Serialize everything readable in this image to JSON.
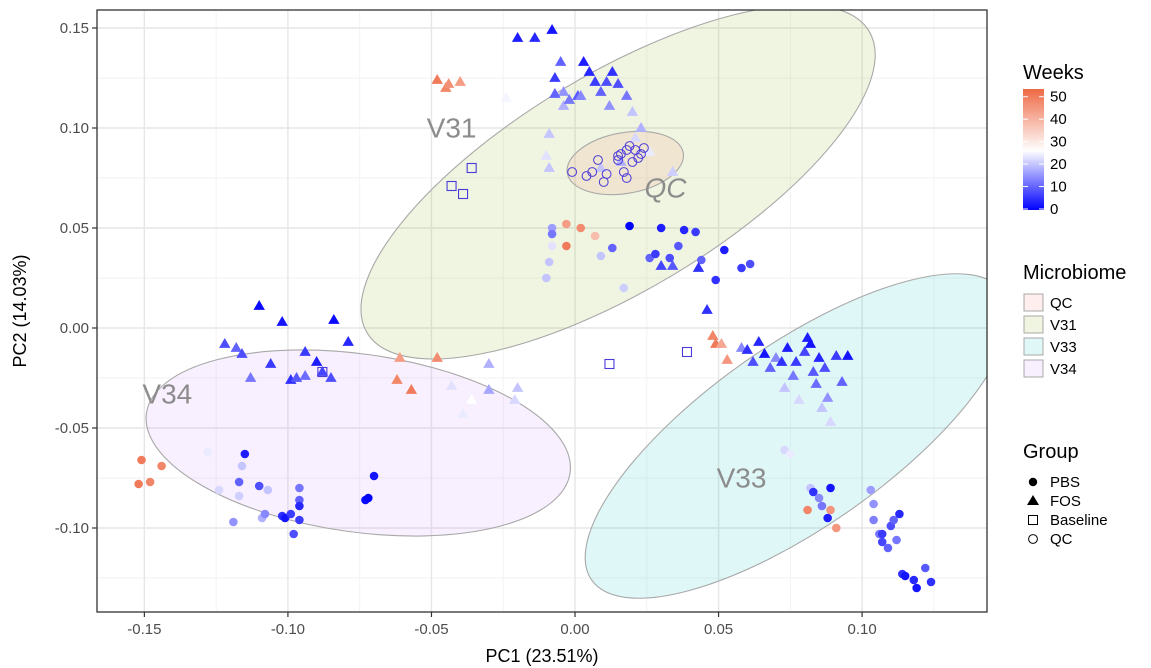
{
  "chart_data": {
    "type": "scatter",
    "xlabel": "PC1 (23.51%)",
    "ylabel": "PC2 (14.03%)",
    "xlim": [
      -0.1665,
      0.1435
    ],
    "ylim": [
      -0.142,
      0.159
    ],
    "x_ticks": [
      -0.15,
      -0.1,
      -0.05,
      0.0,
      0.05,
      0.1
    ],
    "x_tick_labels": [
      "-0.15",
      "-0.10",
      "-0.05",
      "0.00",
      "0.05",
      "0.10"
    ],
    "y_ticks": [
      -0.1,
      -0.05,
      0.0,
      0.05,
      0.1,
      0.15
    ],
    "y_tick_labels": [
      "-0.10",
      "-0.05",
      "0.00",
      "0.05",
      "0.10",
      "0.15"
    ],
    "grid": true,
    "color_legend": {
      "title": "Weeks",
      "ticks": [
        0,
        10,
        20,
        30,
        40,
        50
      ],
      "tick_labels": [
        "0",
        "10",
        "20",
        "30",
        "40",
        "50"
      ],
      "low_color": "#0000FF",
      "mid_color": "#FFFFFF",
      "high_color": "#EE6A46",
      "midpoint": 26,
      "max": 53
    },
    "fill_legend": {
      "title": "Microbiome",
      "entries": [
        {
          "label": "QC",
          "color": "#F8766D"
        },
        {
          "label": "V31",
          "color": "#7CAE00"
        },
        {
          "label": "V33",
          "color": "#00BFC4"
        },
        {
          "label": "V34",
          "color": "#C77CFF"
        }
      ]
    },
    "shape_legend": {
      "title": "Group",
      "entries": [
        {
          "label": "PBS",
          "shape": "circle-filled"
        },
        {
          "label": "FOS",
          "shape": "triangle-filled"
        },
        {
          "label": "Baseline",
          "shape": "square-open"
        },
        {
          "label": "QC",
          "shape": "circle-open"
        }
      ]
    },
    "ellipses": [
      {
        "label": "V31",
        "fill": "#7CAE00",
        "center": [
          0.015,
          0.073
        ],
        "r1": 0.102,
        "r2": 0.054,
        "angle_deg": -31
      },
      {
        "label": "V34",
        "fill": "#C77CFF",
        "center": [
          -0.0755,
          -0.0575
        ],
        "r1": 0.0745,
        "r2": 0.0445,
        "angle_deg": 8
      },
      {
        "label": "V33",
        "fill": "#00BFC4",
        "center": [
          0.0775,
          -0.054
        ],
        "r1": 0.0875,
        "r2": 0.0455,
        "angle_deg": -35
      },
      {
        "label": "QC",
        "fill": "#F8766D",
        "center": [
          0.0175,
          0.0825
        ],
        "r1": 0.0205,
        "r2": 0.0152,
        "angle_deg": -10
      }
    ],
    "ellipse_labels": [
      {
        "text": "V31",
        "x": -0.043,
        "y": 0.099,
        "italic": false
      },
      {
        "text": "V34",
        "x": -0.142,
        "y": -0.034,
        "italic": false
      },
      {
        "text": "V33",
        "x": 0.058,
        "y": -0.076,
        "italic": false
      },
      {
        "text": "QC",
        "x": 0.0315,
        "y": 0.069,
        "italic": true
      }
    ],
    "points": {
      "PBS": [
        [
          -0.151,
          -0.066,
          50
        ],
        [
          -0.152,
          -0.078,
          50
        ],
        [
          -0.148,
          -0.077,
          48
        ],
        [
          -0.144,
          -0.069,
          48
        ],
        [
          -0.128,
          -0.062,
          24
        ],
        [
          -0.124,
          -0.081,
          22
        ],
        [
          -0.119,
          -0.097,
          15
        ],
        [
          -0.117,
          -0.077,
          10
        ],
        [
          -0.117,
          -0.084,
          21
        ],
        [
          -0.116,
          -0.069,
          20
        ],
        [
          -0.115,
          -0.063,
          3
        ],
        [
          -0.11,
          -0.079,
          8
        ],
        [
          -0.109,
          -0.095,
          18
        ],
        [
          -0.108,
          -0.093,
          14
        ],
        [
          -0.107,
          -0.081,
          20
        ],
        [
          -0.102,
          -0.094,
          5
        ],
        [
          -0.101,
          -0.095,
          2
        ],
        [
          -0.099,
          -0.093,
          6
        ],
        [
          -0.098,
          -0.103,
          8
        ],
        [
          -0.096,
          -0.08,
          12
        ],
        [
          -0.096,
          -0.086,
          10
        ],
        [
          -0.096,
          -0.089,
          4
        ],
        [
          -0.096,
          -0.096,
          6
        ],
        [
          -0.073,
          -0.086,
          1
        ],
        [
          -0.072,
          -0.085,
          0
        ],
        [
          -0.07,
          -0.074,
          2
        ],
        [
          -0.01,
          0.025,
          20
        ],
        [
          -0.008,
          0.05,
          16
        ],
        [
          -0.008,
          0.041,
          23
        ],
        [
          -0.008,
          0.047,
          12
        ],
        [
          -0.009,
          0.033,
          20
        ],
        [
          -0.003,
          0.052,
          44
        ],
        [
          -0.003,
          0.041,
          50
        ],
        [
          0.002,
          0.05,
          47
        ],
        [
          0.007,
          0.046,
          38
        ],
        [
          0.009,
          0.036,
          20
        ],
        [
          0.013,
          0.04,
          10
        ],
        [
          0.017,
          0.02,
          21
        ],
        [
          0.019,
          0.051,
          0
        ],
        [
          0.026,
          0.035,
          10
        ],
        [
          0.028,
          0.037,
          6
        ],
        [
          0.03,
          0.05,
          3
        ],
        [
          0.033,
          0.035,
          8
        ],
        [
          0.036,
          0.041,
          9
        ],
        [
          0.038,
          0.049,
          4
        ],
        [
          0.042,
          0.048,
          6
        ],
        [
          0.044,
          0.034,
          10
        ],
        [
          0.049,
          0.024,
          5
        ],
        [
          0.052,
          0.039,
          3
        ],
        [
          0.058,
          0.03,
          6
        ],
        [
          0.061,
          0.032,
          8
        ],
        [
          0.073,
          -0.061,
          22
        ],
        [
          0.075,
          -0.063,
          24
        ],
        [
          0.081,
          -0.091,
          48
        ],
        [
          0.082,
          -0.08,
          20
        ],
        [
          0.083,
          -0.082,
          5
        ],
        [
          0.085,
          -0.085,
          14
        ],
        [
          0.086,
          -0.089,
          12
        ],
        [
          0.088,
          -0.095,
          3
        ],
        [
          0.089,
          -0.091,
          45
        ],
        [
          0.091,
          -0.1,
          45
        ],
        [
          0.089,
          -0.08,
          2
        ],
        [
          0.103,
          -0.081,
          16
        ],
        [
          0.104,
          -0.088,
          15
        ],
        [
          0.104,
          -0.096,
          13
        ],
        [
          0.106,
          -0.103,
          12
        ],
        [
          0.107,
          -0.103,
          6
        ],
        [
          0.107,
          -0.107,
          7
        ],
        [
          0.109,
          -0.11,
          10
        ],
        [
          0.11,
          -0.099,
          8
        ],
        [
          0.111,
          -0.096,
          10
        ],
        [
          0.112,
          -0.106,
          12
        ],
        [
          0.113,
          -0.093,
          4
        ],
        [
          0.114,
          -0.123,
          5
        ],
        [
          0.115,
          -0.124,
          2
        ],
        [
          0.118,
          -0.126,
          4
        ],
        [
          0.119,
          -0.13,
          2
        ],
        [
          0.122,
          -0.12,
          9
        ],
        [
          0.124,
          -0.127,
          5
        ]
      ],
      "FOS": [
        [
          -0.122,
          -0.008,
          8
        ],
        [
          -0.118,
          -0.01,
          10
        ],
        [
          -0.116,
          -0.013,
          8
        ],
        [
          -0.113,
          -0.025,
          12
        ],
        [
          -0.11,
          0.011,
          1
        ],
        [
          -0.106,
          -0.018,
          6
        ],
        [
          -0.102,
          0.003,
          2
        ],
        [
          -0.099,
          -0.026,
          5
        ],
        [
          -0.097,
          -0.025,
          9
        ],
        [
          -0.094,
          -0.012,
          6
        ],
        [
          -0.094,
          -0.024,
          11
        ],
        [
          -0.09,
          -0.017,
          3
        ],
        [
          -0.088,
          -0.022,
          7
        ],
        [
          -0.085,
          -0.025,
          8
        ],
        [
          -0.084,
          0.004,
          1
        ],
        [
          -0.079,
          -0.007,
          4
        ],
        [
          -0.062,
          -0.026,
          48
        ],
        [
          -0.061,
          -0.015,
          44
        ],
        [
          -0.057,
          -0.031,
          50
        ],
        [
          -0.048,
          -0.015,
          47
        ],
        [
          -0.043,
          -0.029,
          23
        ],
        [
          -0.039,
          -0.043,
          24
        ],
        [
          -0.036,
          -0.036,
          26
        ],
        [
          -0.03,
          -0.018,
          18
        ],
        [
          -0.03,
          -0.031,
          17
        ],
        [
          -0.048,
          0.124,
          50
        ],
        [
          -0.045,
          0.12,
          48
        ],
        [
          -0.044,
          0.122,
          46
        ],
        [
          -0.04,
          0.123,
          44
        ],
        [
          -0.024,
          0.115,
          25
        ],
        [
          -0.02,
          0.145,
          3
        ],
        [
          -0.014,
          0.145,
          4
        ],
        [
          -0.008,
          0.149,
          2
        ],
        [
          -0.005,
          0.133,
          10
        ],
        [
          -0.007,
          0.125,
          6
        ],
        [
          -0.004,
          0.118,
          15
        ],
        [
          -0.007,
          0.117,
          10
        ],
        [
          -0.009,
          0.097,
          20
        ],
        [
          -0.01,
          0.086,
          23
        ],
        [
          -0.009,
          0.08,
          20
        ],
        [
          -0.004,
          0.111,
          18
        ],
        [
          -0.002,
          0.114,
          12
        ],
        [
          0.001,
          0.116,
          9
        ],
        [
          0.002,
          0.116,
          14
        ],
        [
          0.003,
          0.133,
          3
        ],
        [
          0.005,
          0.128,
          4
        ],
        [
          0.007,
          0.123,
          6
        ],
        [
          0.009,
          0.118,
          10
        ],
        [
          0.011,
          0.123,
          8
        ],
        [
          0.012,
          0.111,
          15
        ],
        [
          0.013,
          0.128,
          5
        ],
        [
          0.015,
          0.122,
          8
        ],
        [
          0.018,
          0.116,
          12
        ],
        [
          0.02,
          0.108,
          20
        ],
        [
          0.021,
          0.095,
          22
        ],
        [
          0.023,
          0.1,
          18
        ],
        [
          0.026,
          0.088,
          24
        ],
        [
          0.009,
          0.08,
          20
        ],
        [
          0.016,
          0.083,
          18
        ],
        [
          0.034,
          0.078,
          21
        ],
        [
          0.03,
          0.031,
          7
        ],
        [
          0.034,
          0.031,
          9
        ],
        [
          0.043,
          0.03,
          5
        ],
        [
          0.046,
          0.009,
          5
        ],
        [
          0.048,
          -0.004,
          48
        ],
        [
          0.049,
          -0.008,
          50
        ],
        [
          0.051,
          -0.008,
          42
        ],
        [
          0.053,
          -0.016,
          45
        ],
        [
          0.058,
          -0.01,
          14
        ],
        [
          0.06,
          -0.011,
          5
        ],
        [
          0.062,
          -0.017,
          8
        ],
        [
          0.064,
          -0.007,
          4
        ],
        [
          0.066,
          -0.013,
          2
        ],
        [
          0.068,
          -0.02,
          10
        ],
        [
          0.07,
          -0.015,
          14
        ],
        [
          0.072,
          -0.017,
          5
        ],
        [
          0.073,
          -0.03,
          20
        ],
        [
          0.074,
          -0.01,
          3
        ],
        [
          0.076,
          -0.024,
          12
        ],
        [
          0.077,
          -0.017,
          6
        ],
        [
          0.078,
          -0.036,
          22
        ],
        [
          0.08,
          -0.012,
          7
        ],
        [
          0.081,
          -0.005,
          3
        ],
        [
          0.082,
          -0.008,
          2
        ],
        [
          0.083,
          -0.022,
          9
        ],
        [
          0.084,
          -0.028,
          11
        ],
        [
          0.085,
          -0.015,
          4
        ],
        [
          0.086,
          -0.04,
          20
        ],
        [
          0.087,
          -0.02,
          8
        ],
        [
          0.088,
          -0.035,
          15
        ],
        [
          0.089,
          -0.047,
          22
        ],
        [
          0.091,
          -0.014,
          6
        ],
        [
          0.093,
          -0.027,
          10
        ],
        [
          0.095,
          -0.014,
          2
        ],
        [
          -0.02,
          -0.03,
          20
        ],
        [
          -0.021,
          -0.036,
          22
        ]
      ],
      "Baseline": [
        [
          -0.043,
          0.071
        ],
        [
          -0.039,
          0.067
        ],
        [
          -0.036,
          0.08
        ],
        [
          -0.088,
          -0.022
        ],
        [
          0.012,
          -0.018
        ],
        [
          0.039,
          -0.012
        ]
      ],
      "QC": [
        [
          -0.001,
          0.078
        ],
        [
          0.004,
          0.076
        ],
        [
          0.006,
          0.078
        ],
        [
          0.008,
          0.084
        ],
        [
          0.01,
          0.073
        ],
        [
          0.011,
          0.077
        ],
        [
          0.015,
          0.084
        ],
        [
          0.016,
          0.087
        ],
        [
          0.017,
          0.078
        ],
        [
          0.018,
          0.075
        ],
        [
          0.019,
          0.091
        ],
        [
          0.02,
          0.083
        ],
        [
          0.021,
          0.089
        ],
        [
          0.022,
          0.085
        ],
        [
          0.023,
          0.087
        ],
        [
          0.024,
          0.09
        ],
        [
          0.018,
          0.089
        ],
        [
          0.015,
          0.086
        ]
      ]
    }
  }
}
